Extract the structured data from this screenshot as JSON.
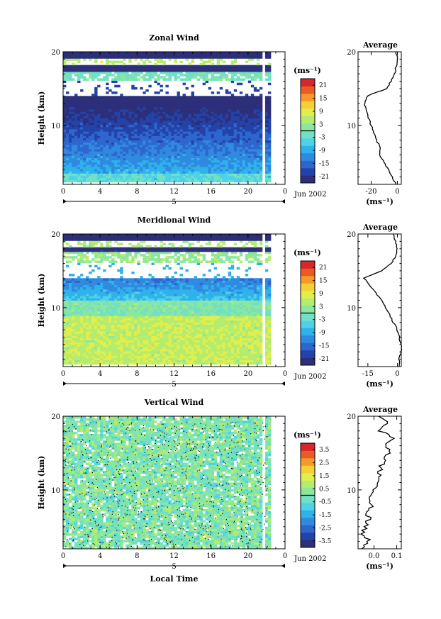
{
  "chart_data": [
    {
      "type": "heatmap",
      "title": "Zonal Wind",
      "ylabel": "Height (km)",
      "xlabel": "",
      "date_label": "Jun 2002",
      "xticks": [
        "0",
        "4",
        "8",
        "12",
        "16",
        "20",
        "0"
      ],
      "secondary_day_label": "5",
      "ylim": [
        2,
        20
      ],
      "yticks": [
        "20",
        "10"
      ],
      "colorbar": {
        "unit": "(ms⁻¹)",
        "ticks": [
          "21",
          "15",
          "9",
          "3",
          "-3",
          "-9",
          "-15",
          "-21"
        ],
        "range": [
          -24,
          24
        ]
      },
      "pattern": "zonal",
      "average_profile": {
        "title": "Average",
        "unit": "(ms⁻¹)",
        "xticks": [
          "-20",
          "0"
        ],
        "xlim": [
          -30,
          3
        ],
        "yticks": [
          "20",
          "10"
        ],
        "height_km": [
          2,
          3,
          4,
          5,
          6,
          7,
          8,
          9,
          10,
          11,
          12,
          13,
          14,
          15,
          16,
          17,
          18,
          19,
          20
        ],
        "values": [
          -1,
          -4,
          -7,
          -10,
          -14,
          -13,
          -16,
          -18,
          -20,
          -22,
          -24,
          -25,
          -23,
          -8,
          -5,
          -2,
          -1,
          0,
          -1
        ]
      }
    },
    {
      "type": "heatmap",
      "title": "Meridional Wind",
      "ylabel": "Height (km)",
      "xlabel": "",
      "date_label": "Jun 2002",
      "xticks": [
        "0",
        "4",
        "8",
        "12",
        "16",
        "20",
        "0"
      ],
      "secondary_day_label": "5",
      "ylim": [
        2,
        20
      ],
      "yticks": [
        "20",
        "10"
      ],
      "colorbar": {
        "unit": "(ms⁻¹)",
        "ticks": [
          "21",
          "15",
          "9",
          "3",
          "-3",
          "-9",
          "-15",
          "-21"
        ],
        "range": [
          -24,
          24
        ]
      },
      "pattern": "meridional",
      "average_profile": {
        "title": "Average",
        "unit": "(ms⁻¹)",
        "xticks": [
          "-15",
          "0"
        ],
        "xlim": [
          -20,
          2
        ],
        "yticks": [
          "20",
          "10"
        ],
        "height_km": [
          2,
          3,
          4,
          5,
          6,
          7,
          8,
          9,
          10,
          11,
          12,
          13,
          14,
          15,
          16,
          17,
          18,
          19,
          20
        ],
        "values": [
          1,
          1,
          2,
          2,
          1,
          0,
          -2,
          -4,
          -6,
          -8,
          -11,
          -14,
          -17,
          -8,
          -3,
          -1,
          0,
          -1,
          -2
        ]
      }
    },
    {
      "type": "heatmap",
      "title": "Vertical Wind",
      "ylabel": "Height (km)",
      "xlabel": "Local Time",
      "date_label": "Jun 2002",
      "xticks": [
        "0",
        "4",
        "8",
        "12",
        "16",
        "20",
        "0"
      ],
      "secondary_day_label": "5",
      "ylim": [
        2,
        20
      ],
      "yticks": [
        "20",
        "10"
      ],
      "colorbar": {
        "unit": "(ms⁻¹)",
        "ticks": [
          "3.5",
          "2.5",
          "1.5",
          "0.5",
          "-0.5",
          "-1.5",
          "-2.5",
          "-3.5"
        ],
        "range": [
          -4,
          4
        ]
      },
      "pattern": "vertical",
      "average_profile": {
        "title": "Average",
        "unit": "(ms⁻¹)",
        "xticks": [
          "0.0",
          "0.1"
        ],
        "xlim": [
          -0.07,
          0.12
        ],
        "yticks": [
          "20",
          "10"
        ],
        "height_km": [
          2,
          3,
          4,
          5,
          6,
          7,
          8,
          9,
          10,
          11,
          12,
          13,
          14,
          15,
          16,
          17,
          18,
          19,
          20
        ],
        "values": [
          -0.05,
          -0.02,
          -0.05,
          -0.04,
          -0.02,
          -0.03,
          -0.01,
          -0.02,
          0.0,
          0.01,
          0.02,
          0.03,
          0.04,
          0.07,
          0.05,
          0.08,
          0.03,
          0.06,
          0.02
        ]
      }
    }
  ],
  "colors": {
    "scale": [
      "#2d2f7a",
      "#2343a8",
      "#2e66cf",
      "#2f8ae0",
      "#2fb2ec",
      "#4fd1e8",
      "#71e0c4",
      "#8be6a0",
      "#b3ec6e",
      "#e2ee4c",
      "#f5cf36",
      "#f59a2a",
      "#ea5a26",
      "#d8262a"
    ]
  }
}
